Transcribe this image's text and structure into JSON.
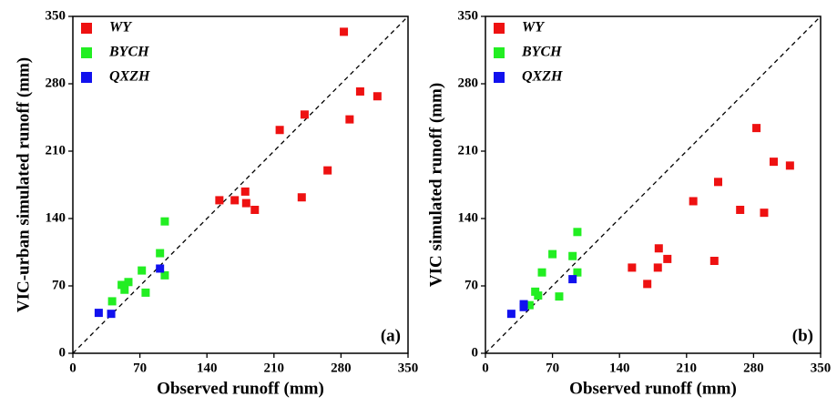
{
  "chart_data": [
    {
      "type": "scatter",
      "panel_label": "(a)",
      "x_label": "Observed runoff (mm)",
      "y_label": "VIC-urban simulated runoff (mm)",
      "xlim": [
        0,
        350
      ],
      "ylim": [
        0,
        350
      ],
      "xticks": [
        0,
        70,
        140,
        210,
        280,
        350
      ],
      "yticks": [
        0,
        70,
        140,
        210,
        280,
        350
      ],
      "legend": "upper left",
      "series": [
        {
          "name": "WY",
          "color": "#ee1111",
          "x": [
            283,
            242,
            216,
            300,
            318,
            289,
            266,
            239,
            153,
            169,
            180,
            181,
            190
          ],
          "y": [
            334,
            248,
            232,
            272,
            267,
            243,
            190,
            162,
            159,
            159,
            168,
            156,
            149
          ]
        },
        {
          "name": "BYCH",
          "color": "#22ee22",
          "x": [
            96,
            91,
            72,
            58,
            51,
            54,
            76,
            96,
            41
          ],
          "y": [
            137,
            104,
            86,
            74,
            71,
            66,
            63,
            81,
            54
          ]
        },
        {
          "name": "QXZH",
          "color": "#1111ee",
          "x": [
            27,
            40,
            91
          ],
          "y": [
            42,
            41,
            88
          ]
        }
      ]
    },
    {
      "type": "scatter",
      "panel_label": "(b)",
      "x_label": "Observed runoff (mm)",
      "y_label": "VIC simulated runoff (mm)",
      "xlim": [
        0,
        350
      ],
      "ylim": [
        0,
        350
      ],
      "xticks": [
        0,
        70,
        140,
        210,
        280,
        350
      ],
      "yticks": [
        0,
        70,
        140,
        210,
        280,
        350
      ],
      "legend": "upper left",
      "series": [
        {
          "name": "WY",
          "color": "#ee1111",
          "x": [
            283,
            301,
            318,
            243,
            217,
            266,
            291,
            181,
            190,
            180,
            153,
            169,
            239
          ],
          "y": [
            234,
            199,
            195,
            178,
            158,
            149,
            146,
            109,
            98,
            89,
            89,
            72,
            96
          ]
        },
        {
          "name": "BYCH",
          "color": "#22ee22",
          "x": [
            96,
            70,
            91,
            59,
            96,
            52,
            55,
            77,
            46
          ],
          "y": [
            126,
            103,
            101,
            84,
            84,
            64,
            60,
            59,
            50
          ]
        },
        {
          "name": "QXZH",
          "color": "#1111ee",
          "x": [
            27,
            40,
            40,
            91
          ],
          "y": [
            41,
            51,
            48,
            77
          ]
        }
      ]
    }
  ]
}
